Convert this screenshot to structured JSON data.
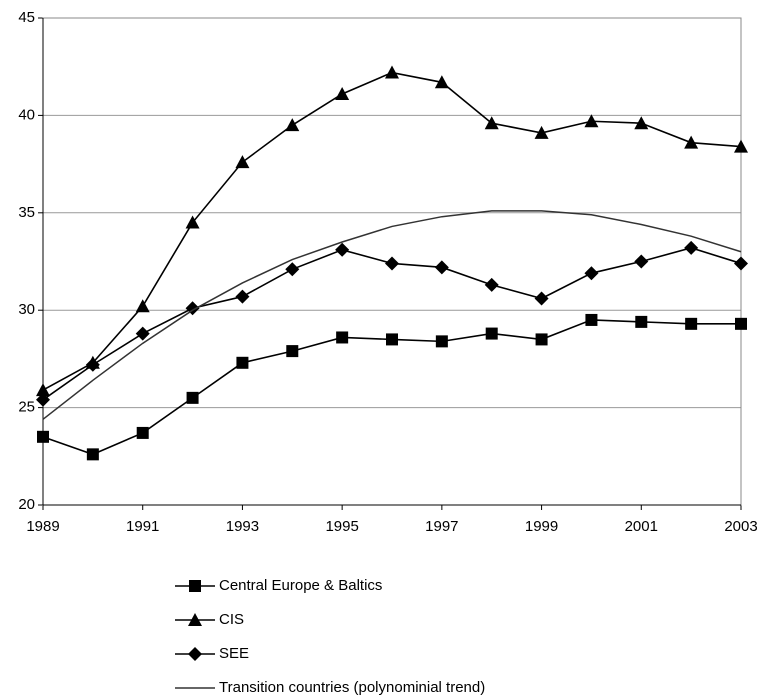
{
  "chart_data": {
    "type": "line",
    "x": [
      1989,
      1990,
      1991,
      1992,
      1993,
      1994,
      1995,
      1996,
      1997,
      1998,
      1999,
      2000,
      2001,
      2002,
      2003
    ],
    "xlim": [
      1989,
      2003
    ],
    "xticks": [
      1989,
      1991,
      1993,
      1995,
      1997,
      1999,
      2001,
      2003
    ],
    "ylim": [
      20,
      45
    ],
    "yticks": [
      20,
      25,
      30,
      35,
      40,
      45
    ],
    "grid": true,
    "series": [
      {
        "name": "Central Europe & Baltics",
        "color": "#000000",
        "marker": "square",
        "values": [
          23.5,
          22.6,
          23.7,
          25.5,
          27.3,
          27.9,
          28.6,
          28.5,
          28.4,
          28.8,
          28.5,
          29.5,
          29.4,
          29.3,
          29.3
        ]
      },
      {
        "name": "CIS",
        "color": "#000000",
        "marker": "triangle",
        "values": [
          25.9,
          27.3,
          30.2,
          34.5,
          37.6,
          39.5,
          41.1,
          42.2,
          41.7,
          39.6,
          39.1,
          39.7,
          39.6,
          38.6,
          38.4
        ]
      },
      {
        "name": "SEE",
        "color": "#000000",
        "marker": "diamond",
        "values": [
          25.4,
          27.2,
          28.8,
          30.1,
          30.7,
          32.1,
          33.1,
          32.4,
          32.2,
          31.3,
          30.6,
          31.9,
          32.5,
          33.2,
          32.4
        ]
      },
      {
        "name": "Transition countries (polynominial trend)",
        "color": "#333333",
        "marker": "none",
        "values": [
          24.4,
          26.4,
          28.3,
          30.0,
          31.4,
          32.6,
          33.5,
          34.3,
          34.8,
          35.1,
          35.1,
          34.9,
          34.4,
          33.8,
          33.0
        ]
      }
    ]
  }
}
